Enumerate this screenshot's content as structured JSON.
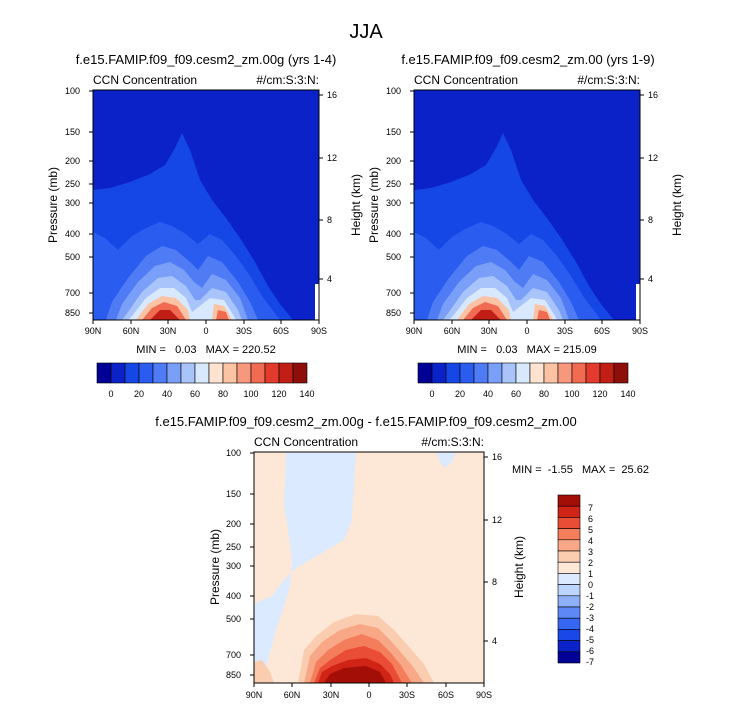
{
  "figure": {
    "title": "JJA"
  },
  "colors": {
    "levels12": [
      "#000096",
      "#0a22c8",
      "#1546e6",
      "#2a5cf0",
      "#4f7cf5",
      "#7a9ff8",
      "#a9c4fb",
      "#d8e8fd",
      "#fde3d0",
      "#fbc2a4",
      "#f7977b",
      "#f16a52",
      "#e23a2c",
      "#c11f16",
      "#8e0f0a"
    ],
    "diff": [
      "#000096",
      "#0a22c8",
      "#1a48e8",
      "#3567f2",
      "#5e88f6",
      "#8db0f9",
      "#bcd5fc",
      "#dbeafe",
      "#fde7d6",
      "#fbcdb0",
      "#f8a886",
      "#f47d5c",
      "#ea4d35",
      "#cf2416",
      "#a30f06"
    ]
  },
  "chart_data": [
    {
      "type": "heatmap",
      "title": "f.e15.FAMIP.f09_f09.cesm2_zm.00g (yrs 1-4)",
      "left_label": "CCN Concentration",
      "right_label": "#/cm:S:3:N:",
      "ylabel": "Pressure (mb)",
      "ylabel_right": "Height (km)",
      "xticks": [
        "90N",
        "60N",
        "30N",
        "0",
        "30S",
        "60S",
        "90S"
      ],
      "yticks": [
        "100",
        "150",
        "200",
        "250",
        "300",
        "400",
        "500",
        "700",
        "850"
      ],
      "yticks_right": [
        "16",
        "12",
        "8",
        "4"
      ],
      "stats": "MIN =   0.03   MAX = 220.52",
      "min": 0.03,
      "max": 220.52
    },
    {
      "type": "heatmap",
      "title": "f.e15.FAMIP.f09_f09.cesm2_zm.00 (yrs 1-9)",
      "left_label": "CCN Concentration",
      "right_label": "#/cm:S:3:N:",
      "ylabel": "Pressure (mb)",
      "ylabel_right": "Height (km)",
      "xticks": [
        "90N",
        "60N",
        "30N",
        "0",
        "30S",
        "60S",
        "90S"
      ],
      "yticks": [
        "100",
        "150",
        "200",
        "250",
        "300",
        "400",
        "500",
        "700",
        "850"
      ],
      "yticks_right": [
        "16",
        "12",
        "8",
        "4"
      ],
      "stats": "MIN =   0.03   MAX = 215.09",
      "min": 0.03,
      "max": 215.09
    },
    {
      "type": "heatmap",
      "title": "f.e15.FAMIP.f09_f09.cesm2_zm.00g - f.e15.FAMIP.f09_f09.cesm2_zm.00",
      "left_label": "CCN Concentration",
      "right_label": "#/cm:S:3:N:",
      "ylabel": "Pressure (mb)",
      "ylabel_right": "Height (km)",
      "xticks": [
        "90N",
        "60N",
        "30N",
        "0",
        "30S",
        "60S",
        "90S"
      ],
      "yticks": [
        "100",
        "150",
        "200",
        "250",
        "300",
        "400",
        "500",
        "700",
        "850"
      ],
      "yticks_right": [
        "16",
        "12",
        "8",
        "4"
      ],
      "stats": "MIN =  -1.55   MAX =  25.62",
      "min": -1.55,
      "max": 25.62
    }
  ],
  "colorbars": {
    "top": {
      "labels": [
        "0",
        "20",
        "40",
        "60",
        "80",
        "100",
        "120",
        "140"
      ]
    },
    "diff": {
      "labels": [
        "7",
        "6",
        "5",
        "4",
        "3",
        "2",
        "1",
        "0",
        "-1",
        "-2",
        "-3",
        "-4",
        "-5",
        "-6",
        "-7"
      ]
    }
  }
}
